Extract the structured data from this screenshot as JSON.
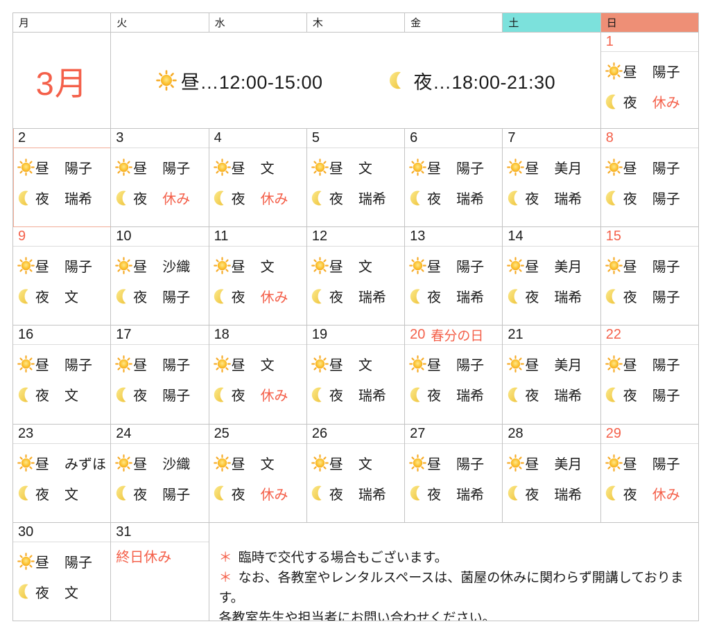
{
  "month_title": "3月",
  "weekday_header": [
    "月",
    "火",
    "水",
    "木",
    "金",
    "土",
    "日"
  ],
  "legend": {
    "day_icon": "sun-icon",
    "day_text": "昼…12:00-15:00",
    "night_icon": "moon-icon",
    "night_text": "夜…18:00-21:30"
  },
  "labels": {
    "day": "昼",
    "night": "夜",
    "off": "休み"
  },
  "colors": {
    "accent": "#f4604a",
    "saturday_header_bg": "#7ce1dc",
    "sunday_header_bg": "#ee8f76",
    "grid_line": "#c3c3c3",
    "today_border": "#f2ac97"
  },
  "days": [
    {
      "num": "1",
      "col": 7,
      "row": 2,
      "holiday": true,
      "shifts": {
        "day": "陽子",
        "night": "休み"
      }
    },
    {
      "num": "2",
      "col": 1,
      "row": 3,
      "today": true,
      "shifts": {
        "day": "陽子",
        "night": "瑞希"
      }
    },
    {
      "num": "3",
      "col": 2,
      "row": 3,
      "shifts": {
        "day": "陽子",
        "night": "休み"
      }
    },
    {
      "num": "4",
      "col": 3,
      "row": 3,
      "shifts": {
        "day": "文",
        "night": "休み"
      }
    },
    {
      "num": "5",
      "col": 4,
      "row": 3,
      "shifts": {
        "day": "文",
        "night": "瑞希"
      }
    },
    {
      "num": "6",
      "col": 5,
      "row": 3,
      "shifts": {
        "day": "陽子",
        "night": "瑞希"
      }
    },
    {
      "num": "7",
      "col": 6,
      "row": 3,
      "shifts": {
        "day": "美月",
        "night": "瑞希"
      }
    },
    {
      "num": "8",
      "col": 7,
      "row": 3,
      "holiday": true,
      "shifts": {
        "day": "陽子",
        "night": "陽子"
      }
    },
    {
      "num": "9",
      "col": 1,
      "row": 4,
      "holiday": true,
      "shifts": {
        "day": "陽子",
        "night": "文"
      }
    },
    {
      "num": "10",
      "col": 2,
      "row": 4,
      "shifts": {
        "day": "沙織",
        "night": "陽子"
      }
    },
    {
      "num": "11",
      "col": 3,
      "row": 4,
      "shifts": {
        "day": "文",
        "night": "休み"
      }
    },
    {
      "num": "12",
      "col": 4,
      "row": 4,
      "shifts": {
        "day": "文",
        "night": "瑞希"
      }
    },
    {
      "num": "13",
      "col": 5,
      "row": 4,
      "shifts": {
        "day": "陽子",
        "night": "瑞希"
      }
    },
    {
      "num": "14",
      "col": 6,
      "row": 4,
      "shifts": {
        "day": "美月",
        "night": "瑞希"
      }
    },
    {
      "num": "15",
      "col": 7,
      "row": 4,
      "holiday": true,
      "shifts": {
        "day": "陽子",
        "night": "陽子"
      }
    },
    {
      "num": "16",
      "col": 1,
      "row": 5,
      "shifts": {
        "day": "陽子",
        "night": "文"
      }
    },
    {
      "num": "17",
      "col": 2,
      "row": 5,
      "shifts": {
        "day": "陽子",
        "night": "陽子"
      }
    },
    {
      "num": "18",
      "col": 3,
      "row": 5,
      "shifts": {
        "day": "文",
        "night": "休み"
      }
    },
    {
      "num": "19",
      "col": 4,
      "row": 5,
      "shifts": {
        "day": "文",
        "night": "瑞希"
      }
    },
    {
      "num": "20",
      "col": 5,
      "row": 5,
      "holiday": true,
      "label": "春分の日",
      "shifts": {
        "day": "陽子",
        "night": "瑞希"
      }
    },
    {
      "num": "21",
      "col": 6,
      "row": 5,
      "shifts": {
        "day": "美月",
        "night": "瑞希"
      }
    },
    {
      "num": "22",
      "col": 7,
      "row": 5,
      "holiday": true,
      "shifts": {
        "day": "陽子",
        "night": "陽子"
      }
    },
    {
      "num": "23",
      "col": 1,
      "row": 6,
      "shifts": {
        "day": "みずほ",
        "night": "文"
      }
    },
    {
      "num": "24",
      "col": 2,
      "row": 6,
      "shifts": {
        "day": "沙織",
        "night": "陽子"
      }
    },
    {
      "num": "25",
      "col": 3,
      "row": 6,
      "shifts": {
        "day": "文",
        "night": "休み"
      }
    },
    {
      "num": "26",
      "col": 4,
      "row": 6,
      "shifts": {
        "day": "文",
        "night": "瑞希"
      }
    },
    {
      "num": "27",
      "col": 5,
      "row": 6,
      "shifts": {
        "day": "陽子",
        "night": "瑞希"
      }
    },
    {
      "num": "28",
      "col": 6,
      "row": 6,
      "shifts": {
        "day": "美月",
        "night": "瑞希"
      }
    },
    {
      "num": "29",
      "col": 7,
      "row": 6,
      "holiday": true,
      "shifts": {
        "day": "陽子",
        "night": "休み"
      }
    },
    {
      "num": "30",
      "col": 1,
      "row": 7,
      "shifts": {
        "day": "陽子",
        "night": "文"
      }
    },
    {
      "num": "31",
      "col": 2,
      "row": 7,
      "allday": "終日休み"
    }
  ],
  "notes": [
    {
      "star": "＊",
      "text": "臨時で交代する場合もございます。"
    },
    {
      "star": "＊",
      "text": "なお、各教室やレンタルスペースは、菌屋の休みに関わらず開講しております。"
    },
    {
      "star": "",
      "text": "各教室先生や担当者にお問い合わせください。"
    }
  ]
}
